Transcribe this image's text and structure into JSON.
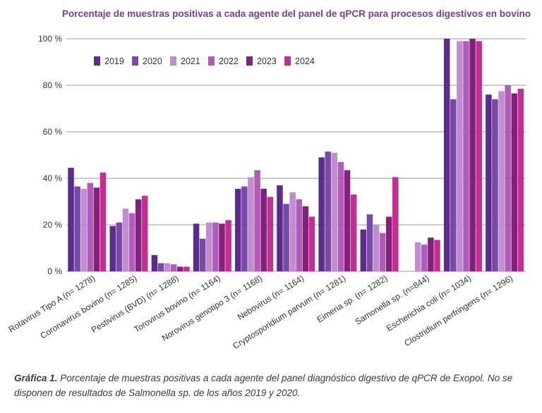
{
  "chart_data": {
    "type": "bar",
    "title": "Porcentaje de muestras positivas a cada agente del panel de qPCR para procesos digestivos en bovino",
    "categories": [
      "Rotavirus Tipo A (n= 1278)",
      "Coronavirus bovino (n= 1285)",
      "Pestivirus (BVD) (n= 1288)",
      "Torovirus bovino (n= 1164)",
      "Norovirus genotipo 3 (n= 1168)",
      "Nebovirus (n= 1164)",
      "Cryptosporidium parvum (n= 1281)",
      "Eimeria sp. (n= 1282)",
      "Samonella sp. (n=844)",
      "Escherichia coli (n= 1034)",
      "Clostridium perfringens (n= 1296)"
    ],
    "series": [
      {
        "name": "2019",
        "color": "#5b2c8a",
        "values": [
          44.5,
          19.5,
          7,
          20.5,
          35.5,
          37,
          49,
          18,
          null,
          100,
          76
        ]
      },
      {
        "name": "2020",
        "color": "#7a48a8",
        "values": [
          36.5,
          21,
          3.5,
          14,
          36.5,
          29,
          51.5,
          24.5,
          null,
          74,
          74
        ]
      },
      {
        "name": "2021",
        "color": "#c08ed0",
        "values": [
          35.5,
          27,
          3.5,
          21,
          40.5,
          34,
          51,
          20,
          12.5,
          99,
          77.5
        ]
      },
      {
        "name": "2022",
        "color": "#b05cb8",
        "values": [
          38,
          25,
          3,
          21,
          43.5,
          31,
          47,
          16.5,
          11.5,
          99,
          80
        ]
      },
      {
        "name": "2023",
        "color": "#82207a",
        "values": [
          36,
          31,
          2,
          20.5,
          35.5,
          28,
          43.5,
          23.5,
          14.5,
          100,
          76.5
        ]
      },
      {
        "name": "2024",
        "color": "#c42d91",
        "values": [
          42.5,
          32.5,
          2,
          22,
          32,
          23.5,
          33,
          40.5,
          13.5,
          99,
          78.5
        ]
      }
    ],
    "ylim": [
      0,
      100
    ],
    "yticks": [
      "0 %",
      "20 %",
      "40 %",
      "60 %",
      "80 %",
      "100 %"
    ],
    "ytick_values": [
      0,
      20,
      40,
      60,
      80,
      100
    ],
    "grid": true,
    "legend_position": "top-left",
    "title_color": "#7b3aa0"
  },
  "caption": {
    "label": "Gráfica 1.",
    "text": " Porcentaje de muestras positivas a cada agente del panel diagnóstico digestivo de qPCR de Exopol. No se disponen de resultados de Salmonella sp. de los años 2019 y 2020."
  }
}
